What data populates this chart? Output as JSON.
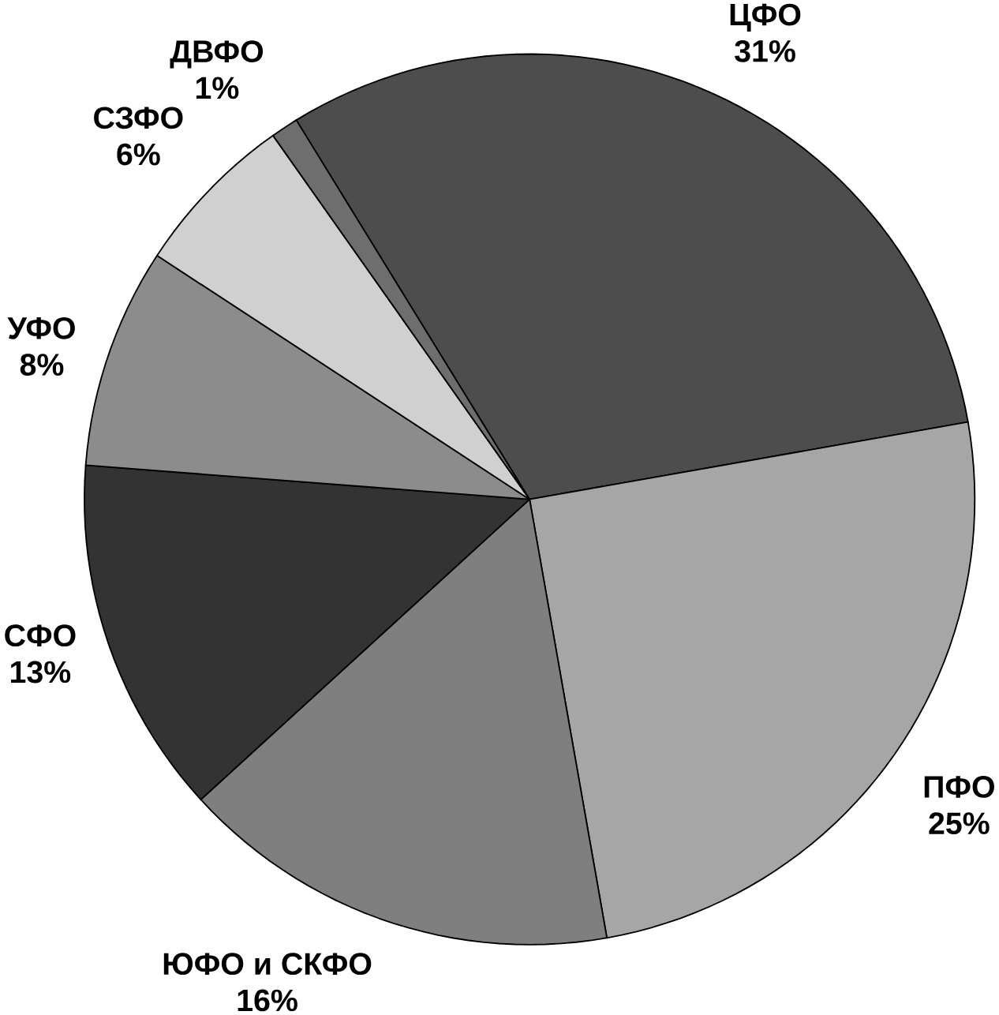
{
  "chart_data": {
    "type": "pie",
    "categories": [
      "ЦФО",
      "ПФО",
      "ЮФО и СКФО",
      "СФО",
      "УФО",
      "СЗФО",
      "ДВФО"
    ],
    "values": [
      31,
      25,
      16,
      13,
      8,
      6,
      1
    ],
    "value_labels": [
      "31%",
      "25%",
      "16%",
      "13%",
      "8%",
      "6%",
      "1%"
    ],
    "colors": [
      "#4d4d4d",
      "#a6a6a6",
      "#7f7f7f",
      "#333333",
      "#8c8c8c",
      "#d0d0d0",
      "#6e6e6e"
    ]
  }
}
